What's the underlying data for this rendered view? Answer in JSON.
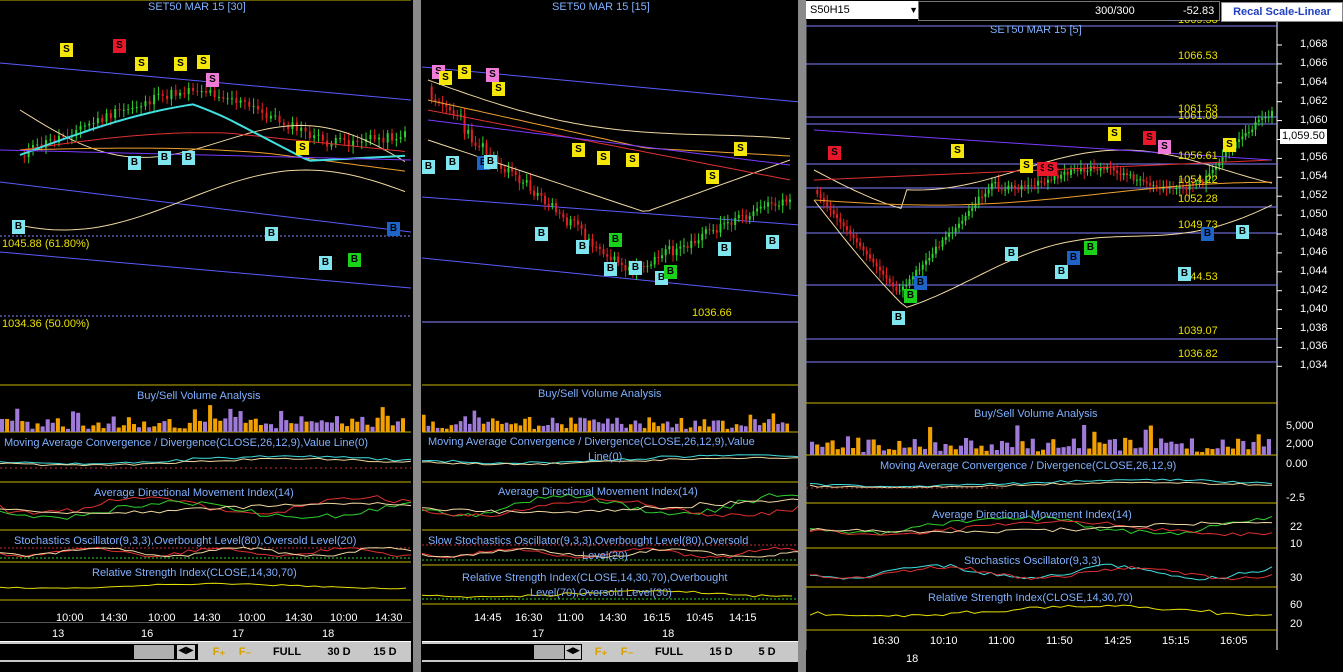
{
  "left": {
    "title": "SET50 MAR 15  [30]",
    "fib1": "1045.88 (61.80%)",
    "fib2": "1034.36 (50.00%)",
    "ind1": "Buy/Sell Volume Analysis",
    "ind2": "Moving Average Convergence / Divergence(CLOSE,26,12,9),Value Line(0)",
    "ind3": "Average Directional Movement Index(14)",
    "ind4": "Stochastics Oscillator(9,3,3),Overbought Level(80),Oversold Level(20)",
    "ind5": "Relative Strength Index(CLOSE,14,30,70)",
    "times": [
      "10:00",
      "14:30",
      "10:00",
      "14:30",
      "10:00",
      "14:30",
      "10:00",
      "14:30"
    ],
    "days": [
      "13",
      "16",
      "17",
      "18"
    ],
    "buttons": {
      "full": "FULL",
      "b30": "30 D",
      "b15": "15 D"
    }
  },
  "mid": {
    "title": "SET50 MAR 15   [15]",
    "price_label": "1036.66",
    "ind1": "Buy/Sell Volume Analysis",
    "ind2a": "Moving Average Convergence / Divergence(CLOSE,26,12,9),Value",
    "ind2b": "Line(0)",
    "ind3": "Average Directional Movement Index(14)",
    "ind4a": "Slow Stochastics Oscillator(9,3,3),Overbought Level(80),Oversold",
    "ind4b": "Level(20)",
    "ind5a": "Relative Strength Index(CLOSE,14,30,70),Overbought",
    "ind5b": "Level(70),Oversold Level(30)",
    "times": [
      "14:45",
      "16:30",
      "11:00",
      "14:30",
      "16:15",
      "10:45",
      "14:15"
    ],
    "days": [
      "17",
      "18"
    ],
    "buttons": {
      "full": "FULL",
      "b15": "15 D",
      "b5": "5 D"
    }
  },
  "right": {
    "symbol": "S50H15",
    "count": "300/300",
    "change": "-52.83",
    "scale_btn": "Recal Scale-Linear",
    "title": "SET50 MAR 15  [5]",
    "levels": [
      "1066.53",
      "1061.53",
      "1061.09",
      "1056.61",
      "1054.22",
      "1052.28",
      "1049.73",
      "1044.53",
      "1039.07",
      "1036.82"
    ],
    "top_partial": "1069.58",
    "last": "1,059.50",
    "yticks": [
      "1,068",
      "1,066",
      "1,064",
      "1,062",
      "1,060",
      "1,058",
      "1,056",
      "1,054",
      "1,052",
      "1,050",
      "1,048",
      "1,046",
      "1,044",
      "1,042",
      "1,040",
      "1,038",
      "1,036",
      "1,034"
    ],
    "ind1": "Buy/Sell Volume Analysis",
    "vol_ticks": [
      "5,000",
      "2,000",
      "0.00"
    ],
    "ind2": "Moving Average Convergence / Divergence(CLOSE,26,12,9)",
    "macd_tick": "-2.5",
    "ind3": "Average Directional Movement Index(14)",
    "adx_ticks": [
      "22",
      "10"
    ],
    "ind4": "Stochastics Oscillator(9,3,3)",
    "sto_tick": "30",
    "ind5": "Relative Strength Index(CLOSE,14,30,70)",
    "rsi_ticks": [
      "60",
      "20"
    ],
    "times": [
      "16:30",
      "10:10",
      "11:00",
      "11:50",
      "14:25",
      "15:15",
      "16:05"
    ],
    "days": [
      "18"
    ]
  },
  "colors": {
    "buy": "#7fe6f0",
    "sell_y": "#f5e60a",
    "sell_r": "#e8182a",
    "sell_p": "#f07ad8",
    "green": "#19d219",
    "blue": "#1e64c8"
  }
}
